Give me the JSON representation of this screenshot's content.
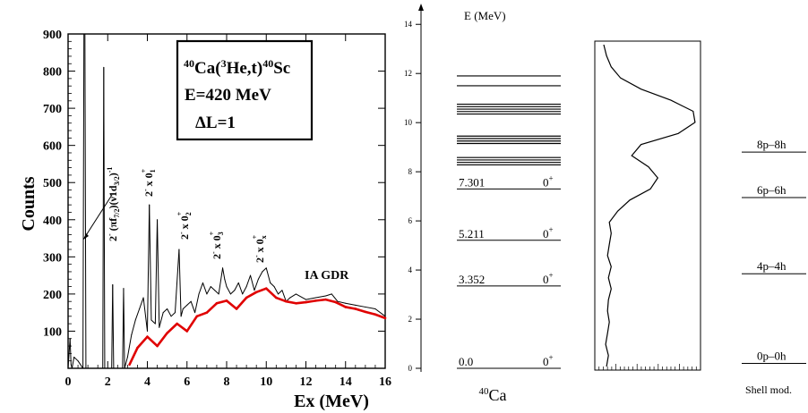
{
  "chart_data": [
    {
      "type": "line",
      "xlabel": "Ex (MeV)",
      "ylabel": "Counts",
      "xlim": [
        0,
        16
      ],
      "ylim": [
        0,
        900
      ],
      "xticks": [
        0,
        2,
        4,
        6,
        8,
        10,
        12,
        14,
        16
      ],
      "xtick_labels": [
        "0",
        "2",
        "4",
        "6",
        "8",
        "10",
        "12",
        "14",
        "16"
      ],
      "yticks": [
        100,
        200,
        300,
        400,
        500,
        600,
        700,
        800,
        900
      ],
      "ytick_labels": [
        "100",
        "200",
        "300",
        "400",
        "500",
        "600",
        "700",
        "800",
        "900"
      ],
      "info_box": {
        "reaction": "40Ca(3He,t)40Sc",
        "energy": "E=420 MeV",
        "dl": "ΔL=1"
      },
      "annotations": [
        {
          "text": "2- (πf7/2)(ν1d3/2)-1",
          "x": 0.8
        },
        {
          "text": "2- x 0+1",
          "x": 1.8
        },
        {
          "text": "2- x 0+2",
          "x": 4.8
        },
        {
          "text": "2- x 0+3",
          "x": 7.4
        },
        {
          "text": "2- x 0+x",
          "x": 9.3
        },
        {
          "text": "IA GDR",
          "x": 11.8,
          "y": 235
        }
      ],
      "series": [
        {
          "color": "#000000",
          "x": [
            0.0,
            0.1,
            0.15,
            0.2,
            0.3,
            0.5,
            0.75,
            0.8,
            0.85,
            0.9,
            1.0,
            1.3,
            1.75,
            1.8,
            1.85,
            2.0,
            2.2,
            2.25,
            2.3,
            2.5,
            2.75,
            2.8,
            2.85,
            3.0,
            3.2,
            3.4,
            3.6,
            3.8,
            4.0,
            4.1,
            4.2,
            4.4,
            4.5,
            4.6,
            4.8,
            5.0,
            5.2,
            5.4,
            5.6,
            5.7,
            5.8,
            6.0,
            6.2,
            6.4,
            6.6,
            6.8,
            7.0,
            7.2,
            7.4,
            7.6,
            7.8,
            7.9,
            8.0,
            8.2,
            8.4,
            8.6,
            8.8,
            9.0,
            9.2,
            9.4,
            9.6,
            9.8,
            10.0,
            10.2,
            10.4,
            10.6,
            10.8,
            11.0,
            11.2,
            11.5,
            12.0,
            12.5,
            13.0,
            13.3,
            13.6,
            14.0,
            14.5,
            15.0,
            15.5,
            16.0
          ],
          "values": [
            0,
            80,
            10,
            0,
            30,
            20,
            0,
            900,
            900,
            0,
            0,
            0,
            0,
            810,
            0,
            0,
            0,
            225,
            0,
            0,
            0,
            215,
            0,
            30,
            90,
            130,
            160,
            190,
            100,
            440,
            130,
            120,
            400,
            110,
            150,
            160,
            140,
            150,
            320,
            140,
            160,
            170,
            180,
            150,
            200,
            230,
            200,
            220,
            210,
            200,
            270,
            240,
            220,
            200,
            210,
            230,
            200,
            220,
            250,
            210,
            240,
            260,
            270,
            230,
            220,
            200,
            210,
            180,
            190,
            200,
            185,
            190,
            195,
            200,
            180,
            175,
            170,
            165,
            160,
            140
          ]
        },
        {
          "color": "#e00000",
          "x": [
            3.1,
            3.5,
            4.0,
            4.5,
            5.0,
            5.5,
            6.0,
            6.5,
            7.0,
            7.5,
            8.0,
            8.5,
            9.0,
            9.5,
            10.0,
            10.5,
            11.0,
            11.5,
            12.0,
            12.5,
            13.0,
            13.5,
            14.0,
            14.5,
            15.0,
            15.5,
            16.0
          ],
          "values": [
            10,
            55,
            85,
            60,
            95,
            120,
            100,
            140,
            150,
            175,
            182,
            160,
            190,
            205,
            215,
            190,
            180,
            175,
            178,
            182,
            185,
            178,
            165,
            160,
            152,
            145,
            135
          ]
        }
      ]
    },
    {
      "type": "level scheme",
      "ylabel": "E (MeV)",
      "ylim": [
        0,
        14.7
      ],
      "yticks": [
        0,
        2,
        4,
        6,
        8,
        10,
        12,
        14
      ],
      "ytick_labels": [
        "0",
        "2",
        "4",
        "6",
        "8",
        "10",
        "12",
        "14"
      ],
      "xlabel": "40Ca",
      "labeled_levels": [
        {
          "energy": 0.0,
          "label": "0.0",
          "jp": "0+"
        },
        {
          "energy": 3.352,
          "label": "3.352",
          "jp": "0+"
        },
        {
          "energy": 5.211,
          "label": "5.211",
          "jp": "0+"
        },
        {
          "energy": 7.301,
          "label": "7.301",
          "jp": "0+"
        }
      ],
      "other_levels": [
        8.28,
        8.38,
        8.48,
        8.58,
        9.15,
        9.25,
        9.35,
        9.45,
        10.35,
        10.45,
        10.55,
        10.65,
        10.75,
        11.5,
        11.9
      ]
    },
    {
      "type": "line",
      "x": [
        0.0,
        0.5,
        1.0,
        1.5,
        2.0,
        2.5,
        3.0,
        3.5,
        4.0,
        4.5,
        5.0,
        5.5,
        6.0,
        6.5,
        7.0,
        7.5,
        8.0,
        8.5,
        9.0,
        9.5,
        10.0,
        10.5,
        11.0,
        11.5,
        12.0,
        12.5,
        13.0,
        13.5,
        14.0,
        14.5
      ],
      "values": [
        0.03,
        0.05,
        0.02,
        0.04,
        0.06,
        0.04,
        0.05,
        0.08,
        0.05,
        0.08,
        0.04,
        0.06,
        0.08,
        0.06,
        0.15,
        0.28,
        0.5,
        0.58,
        0.48,
        0.3,
        0.4,
        0.8,
        0.98,
        0.96,
        0.72,
        0.4,
        0.18,
        0.08,
        0.03,
        0.0
      ]
    },
    {
      "type": "level scheme",
      "xlabel": "Shell mod.",
      "levels": [
        {
          "label": "0p–0h",
          "energy": 0.2
        },
        {
          "label": "4p–4h",
          "energy": 3.85
        },
        {
          "label": "6p–6h",
          "energy": 6.95
        },
        {
          "label": "8p–8h",
          "energy": 8.8
        }
      ]
    }
  ]
}
